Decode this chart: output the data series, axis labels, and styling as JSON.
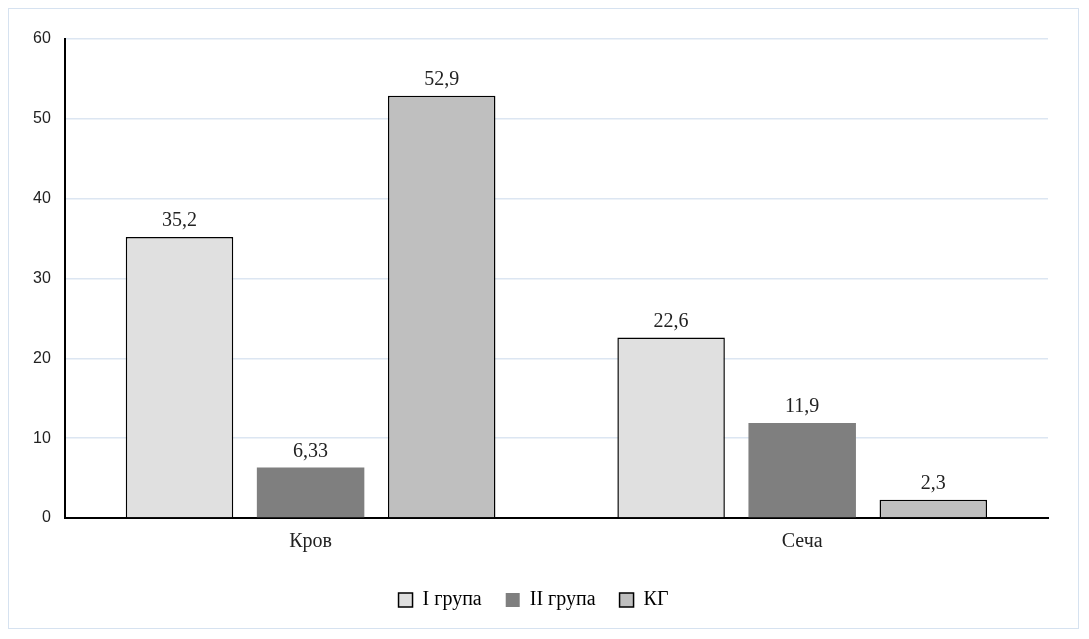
{
  "chart_data": {
    "type": "bar",
    "categories": [
      "Кров",
      "Сеча"
    ],
    "series": [
      {
        "name": "I група",
        "color": "#e0e0e0",
        "values": [
          35.2,
          22.6
        ],
        "value_labels": [
          "35,2",
          "22,6"
        ]
      },
      {
        "name": "II група",
        "color": "#7f7f7f",
        "values": [
          6.33,
          11.9
        ],
        "value_labels": [
          "6,33",
          "11,9"
        ]
      },
      {
        "name": "КГ",
        "color": "#bfbfbf",
        "values": [
          52.9,
          2.3
        ],
        "value_labels": [
          "52,9",
          "2,3"
        ]
      }
    ],
    "ylim": [
      0,
      60
    ],
    "yticks": [
      0,
      10,
      20,
      30,
      40,
      50,
      60
    ],
    "grid": "y",
    "legend": "bottom"
  }
}
